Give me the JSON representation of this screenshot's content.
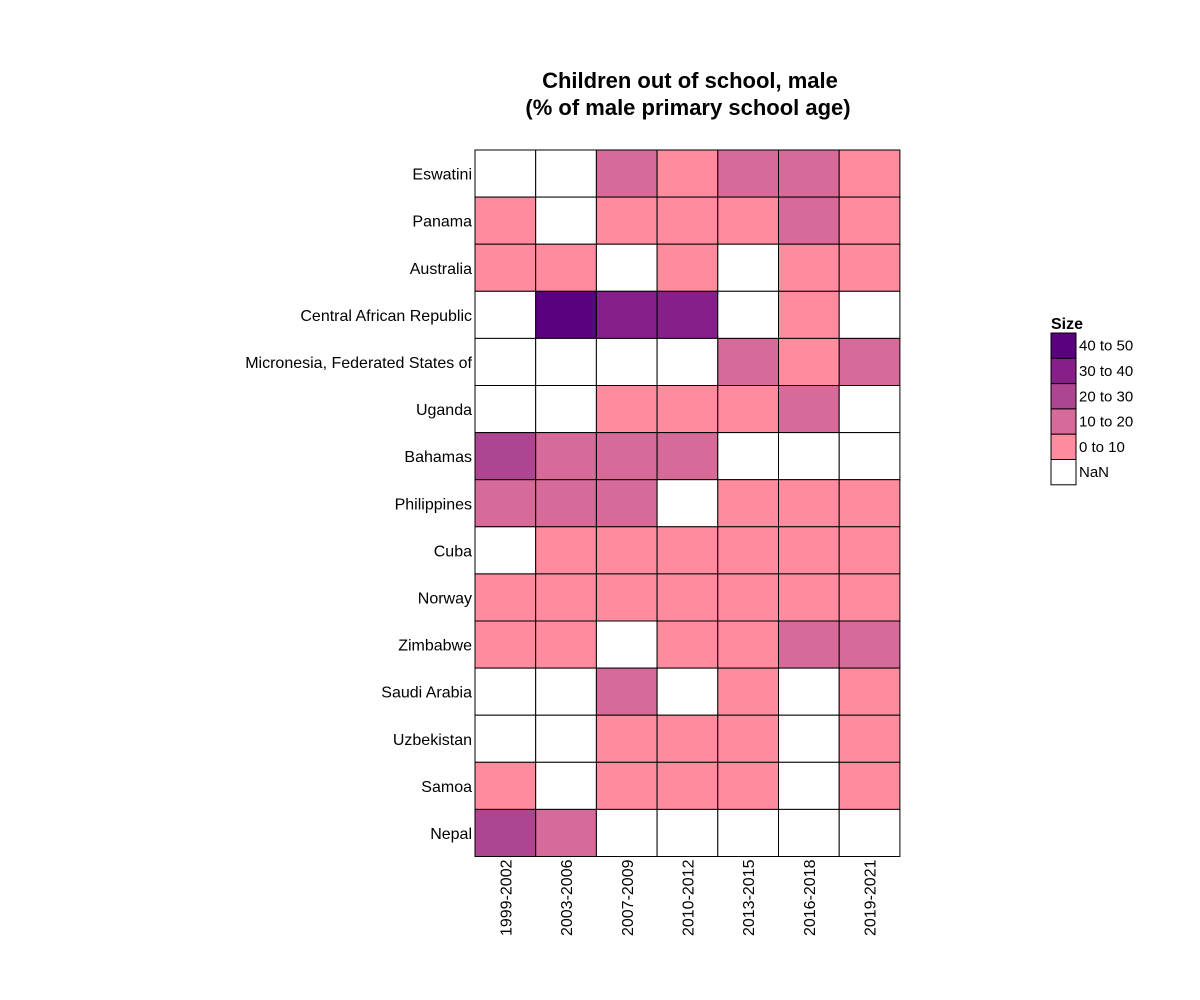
{
  "chart_data": {
    "type": "heatmap",
    "title": [
      "Children out of school, male",
      "(% of male primary school age)"
    ],
    "x": [
      "1999-2002",
      "2003-2006",
      "2007-2009",
      "2010-2012",
      "2013-2015",
      "2016-2018",
      "2019-2021"
    ],
    "y": [
      "Eswatini",
      "Panama",
      "Australia",
      "Central African Republic",
      "Micronesia, Federated States of",
      "Uganda",
      "Bahamas",
      "Philippines",
      "Cuba",
      "Norway",
      "Zimbabwe",
      "Saudi Arabia",
      "Uzbekistan",
      "Samoa",
      "Nepal"
    ],
    "cells": [
      [
        "NaN",
        "NaN",
        "10 to 20",
        "0 to 10",
        "10 to 20",
        "10 to 20",
        "0 to 10"
      ],
      [
        "0 to 10",
        "NaN",
        "0 to 10",
        "0 to 10",
        "0 to 10",
        "10 to 20",
        "0 to 10"
      ],
      [
        "0 to 10",
        "0 to 10",
        "NaN",
        "0 to 10",
        "NaN",
        "0 to 10",
        "0 to 10"
      ],
      [
        "NaN",
        "40 to 50",
        "30 to 40",
        "30 to 40",
        "NaN",
        "0 to 10",
        "NaN"
      ],
      [
        "NaN",
        "NaN",
        "NaN",
        "NaN",
        "10 to 20",
        "0 to 10",
        "10 to 20"
      ],
      [
        "NaN",
        "NaN",
        "0 to 10",
        "0 to 10",
        "0 to 10",
        "10 to 20",
        "NaN"
      ],
      [
        "20 to 30",
        "10 to 20",
        "10 to 20",
        "10 to 20",
        "NaN",
        "NaN",
        "NaN"
      ],
      [
        "10 to 20",
        "10 to 20",
        "10 to 20",
        "NaN",
        "0 to 10",
        "0 to 10",
        "0 to 10"
      ],
      [
        "NaN",
        "0 to 10",
        "0 to 10",
        "0 to 10",
        "0 to 10",
        "0 to 10",
        "0 to 10"
      ],
      [
        "0 to 10",
        "0 to 10",
        "0 to 10",
        "0 to 10",
        "0 to 10",
        "0 to 10",
        "0 to 10"
      ],
      [
        "0 to 10",
        "0 to 10",
        "NaN",
        "0 to 10",
        "0 to 10",
        "10 to 20",
        "10 to 20"
      ],
      [
        "NaN",
        "NaN",
        "10 to 20",
        "NaN",
        "0 to 10",
        "NaN",
        "0 to 10"
      ],
      [
        "NaN",
        "NaN",
        "0 to 10",
        "0 to 10",
        "0 to 10",
        "NaN",
        "0 to 10"
      ],
      [
        "0 to 10",
        "NaN",
        "0 to 10",
        "0 to 10",
        "0 to 10",
        "NaN",
        "0 to 10"
      ],
      [
        "20 to 30",
        "10 to 20",
        "NaN",
        "NaN",
        "NaN",
        "NaN",
        "NaN"
      ]
    ],
    "legend": {
      "title": "Size",
      "placement": "right",
      "entries": [
        {
          "label": "40 to 50",
          "color": "#5b007f"
        },
        {
          "label": "30 to 40",
          "color": "#861f8a"
        },
        {
          "label": "20 to 30",
          "color": "#ad4591"
        },
        {
          "label": "10 to 20",
          "color": "#d66a98"
        },
        {
          "label": "0 to 10",
          "color": "#ff8c9e"
        },
        {
          "label": "NaN",
          "color": "#ffffff"
        }
      ]
    },
    "grid": false
  }
}
